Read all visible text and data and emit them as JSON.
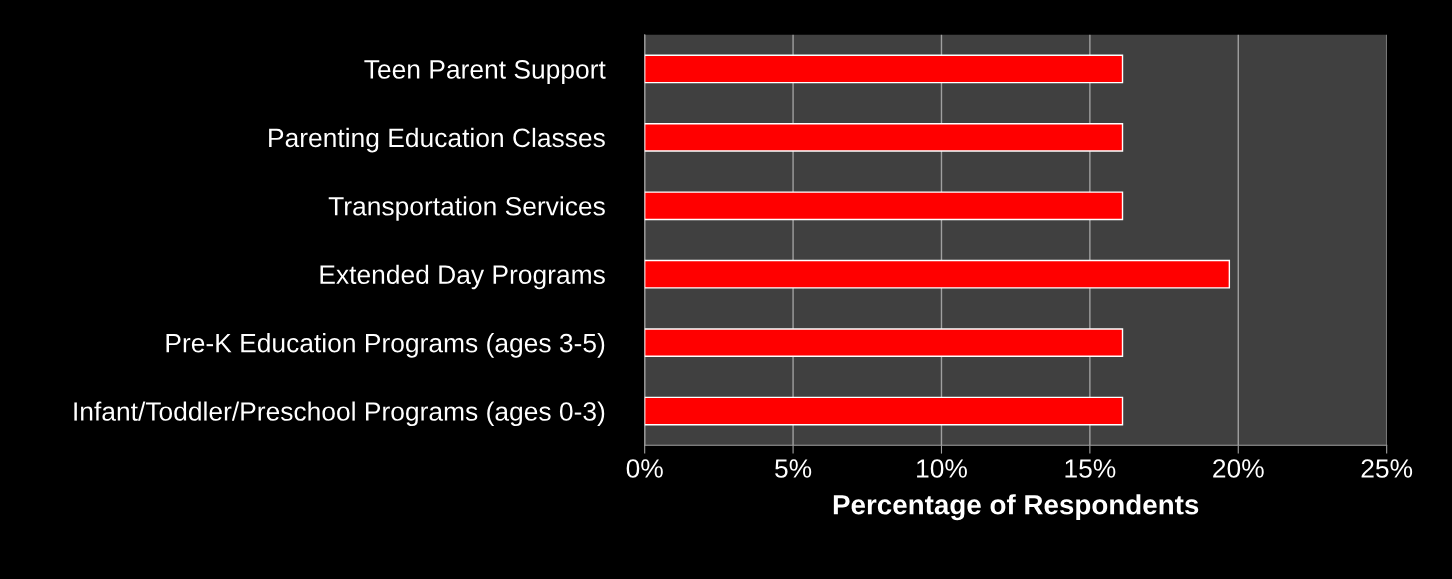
{
  "chart_data": {
    "type": "bar",
    "orientation": "horizontal",
    "xlabel": "Percentage of Respondents",
    "categories": [
      "Teen Parent Support",
      "Parenting Education Classes",
      "Transportation Services",
      "Extended Day Programs",
      "Pre-K Education Programs (ages 3-5)",
      "Infant/Toddler/Preschool Programs (ages 0-3)"
    ],
    "values": [
      16.1,
      16.1,
      16.1,
      19.7,
      16.1,
      16.1
    ],
    "color": "#ff0000",
    "xlim": [
      0,
      25
    ],
    "xticks": [
      {
        "value": 0,
        "label": "0%"
      },
      {
        "value": 5,
        "label": "5%"
      },
      {
        "value": 10,
        "label": "10%"
      },
      {
        "value": 15,
        "label": "15%"
      },
      {
        "value": 20,
        "label": "20%"
      },
      {
        "value": 25,
        "label": "25%"
      }
    ],
    "grid": "x",
    "legend": false
  }
}
